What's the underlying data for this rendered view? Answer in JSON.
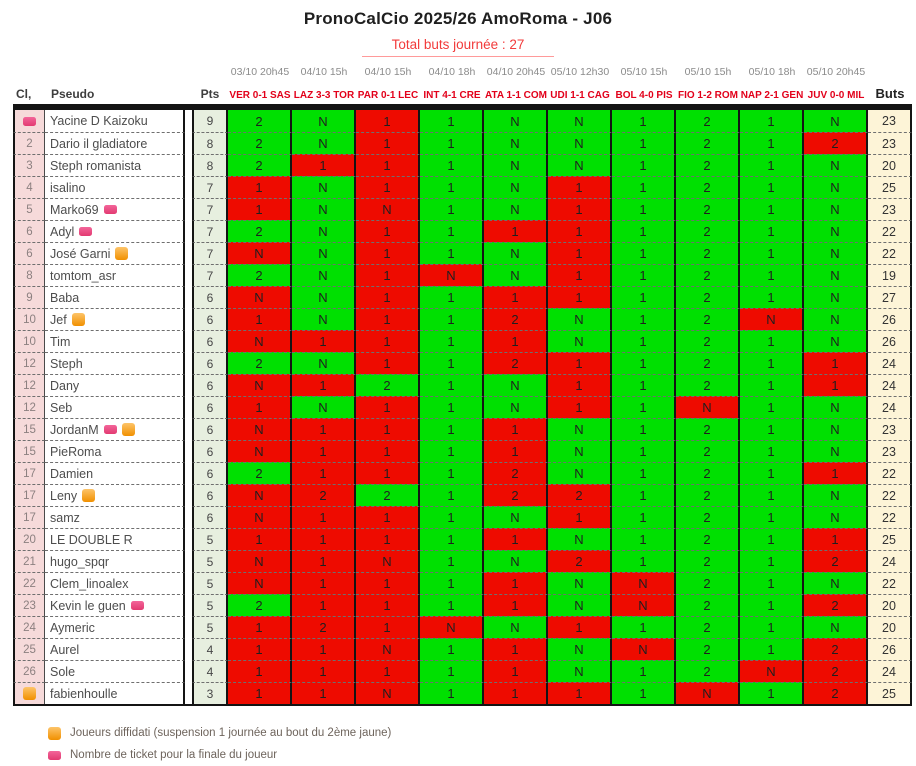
{
  "title": "PronoCalCio 2025/26 AmoRoma - J06",
  "subtitle": "Total buts journée : 27",
  "colors": {
    "correct_cell": "#00e001",
    "wrong_cell": "#ee0b00",
    "rank_col_bg": "#f6dada",
    "pts_col_bg": "#e7efdf",
    "buts_col_bg": "#fdf4d7",
    "match_header_red": "#e2001a",
    "subtitle_red": "#f23b3b"
  },
  "cell_code": {
    "g": "correct (green)",
    "r": "wrong (red)"
  },
  "table": {
    "col_rank": "Cl,",
    "col_pseudo": "Pseudo",
    "col_pts": "Pts",
    "col_buts": "Buts",
    "matches": [
      {
        "date": "03/10 20h45",
        "label": "VER 0-1 SAS"
      },
      {
        "date": "04/10 15h",
        "label": "LAZ 3-3 TOR"
      },
      {
        "date": "04/10 15h",
        "label": "PAR 0-1 LEC"
      },
      {
        "date": "04/10 18h",
        "label": "INT 4-1 CRE"
      },
      {
        "date": "04/10 20h45",
        "label": "ATA 1-1 COM"
      },
      {
        "date": "05/10 12h30",
        "label": "UDI 1-1 CAG"
      },
      {
        "date": "05/10 15h",
        "label": "BOL 4-0 PIS"
      },
      {
        "date": "05/10 15h",
        "label": "FIO 1-2 ROM"
      },
      {
        "date": "05/10 18h",
        "label": "NAP 2-1 GEN"
      },
      {
        "date": "05/10 20h45",
        "label": "JUV 0-0 MIL"
      }
    ],
    "rows": [
      {
        "rank": "",
        "rank_icon": "ticket",
        "name": "Yacine D Kaizoku",
        "icons": [],
        "pts": 9,
        "preds": [
          "2g",
          "Ng",
          "1r",
          "1g",
          "Ng",
          "Ng",
          "1g",
          "2g",
          "1g",
          "Ng"
        ],
        "buts": 23
      },
      {
        "rank": "2",
        "rank_icon": null,
        "name": "Dario il gladiatore",
        "icons": [],
        "pts": 8,
        "preds": [
          "2g",
          "Ng",
          "1r",
          "1g",
          "Ng",
          "Ng",
          "1g",
          "2g",
          "1g",
          "2r"
        ],
        "buts": 23
      },
      {
        "rank": "3",
        "rank_icon": null,
        "name": "Steph romanista",
        "icons": [],
        "pts": 8,
        "preds": [
          "2g",
          "1r",
          "1r",
          "1g",
          "Ng",
          "Ng",
          "1g",
          "2g",
          "1g",
          "Ng"
        ],
        "buts": 20
      },
      {
        "rank": "4",
        "rank_icon": null,
        "name": "isalino",
        "icons": [],
        "pts": 7,
        "preds": [
          "1r",
          "Ng",
          "1r",
          "1g",
          "Ng",
          "1r",
          "1g",
          "2g",
          "1g",
          "Ng"
        ],
        "buts": 25
      },
      {
        "rank": "5",
        "rank_icon": null,
        "name": "Marko69",
        "icons": [
          "ticket"
        ],
        "pts": 7,
        "preds": [
          "1r",
          "Ng",
          "Nr",
          "1g",
          "Ng",
          "1r",
          "1g",
          "2g",
          "1g",
          "Ng"
        ],
        "buts": 23
      },
      {
        "rank": "6",
        "rank_icon": null,
        "name": "Adyl",
        "icons": [
          "ticket"
        ],
        "pts": 7,
        "preds": [
          "2g",
          "Ng",
          "1r",
          "1g",
          "1r",
          "1r",
          "1g",
          "2g",
          "1g",
          "Ng"
        ],
        "buts": 22
      },
      {
        "rank": "6",
        "rank_icon": null,
        "name": "José Garni",
        "icons": [
          "diffidato"
        ],
        "pts": 7,
        "preds": [
          "Nr",
          "Ng",
          "1r",
          "1g",
          "Ng",
          "1r",
          "1g",
          "2g",
          "1g",
          "Ng"
        ],
        "buts": 22
      },
      {
        "rank": "8",
        "rank_icon": null,
        "name": "tomtom_asr",
        "icons": [],
        "pts": 7,
        "preds": [
          "2g",
          "Ng",
          "1r",
          "Nr",
          "Ng",
          "1r",
          "1g",
          "2g",
          "1g",
          "Ng"
        ],
        "buts": 19
      },
      {
        "rank": "9",
        "rank_icon": null,
        "name": "Baba",
        "icons": [],
        "pts": 6,
        "preds": [
          "Nr",
          "Ng",
          "1r",
          "1g",
          "1r",
          "1r",
          "1g",
          "2g",
          "1g",
          "Ng"
        ],
        "buts": 27
      },
      {
        "rank": "10",
        "rank_icon": null,
        "name": "Jef",
        "icons": [
          "diffidato"
        ],
        "pts": 6,
        "preds": [
          "1r",
          "Ng",
          "1r",
          "1g",
          "2r",
          "Ng",
          "1g",
          "2g",
          "Nr",
          "Ng"
        ],
        "buts": 26
      },
      {
        "rank": "10",
        "rank_icon": null,
        "name": "Tim",
        "icons": [],
        "pts": 6,
        "preds": [
          "Nr",
          "1r",
          "1r",
          "1g",
          "1r",
          "Ng",
          "1g",
          "2g",
          "1g",
          "Ng"
        ],
        "buts": 26
      },
      {
        "rank": "12",
        "rank_icon": null,
        "name": "Steph",
        "icons": [],
        "pts": 6,
        "preds": [
          "2g",
          "Ng",
          "1r",
          "1g",
          "2r",
          "1r",
          "1g",
          "2g",
          "1g",
          "1r"
        ],
        "buts": 24
      },
      {
        "rank": "12",
        "rank_icon": null,
        "name": "Dany",
        "icons": [],
        "pts": 6,
        "preds": [
          "Nr",
          "1r",
          "2g",
          "1g",
          "Ng",
          "1r",
          "1g",
          "2g",
          "1g",
          "1r"
        ],
        "buts": 24
      },
      {
        "rank": "12",
        "rank_icon": null,
        "name": "Seb",
        "icons": [],
        "pts": 6,
        "preds": [
          "1r",
          "Ng",
          "1r",
          "1g",
          "Ng",
          "1r",
          "1g",
          "Nr",
          "1g",
          "Ng"
        ],
        "buts": 24
      },
      {
        "rank": "15",
        "rank_icon": null,
        "name": "JordanM",
        "icons": [
          "ticket",
          "diffidato"
        ],
        "pts": 6,
        "preds": [
          "Nr",
          "1r",
          "1r",
          "1g",
          "1r",
          "Ng",
          "1g",
          "2g",
          "1g",
          "Ng"
        ],
        "buts": 23
      },
      {
        "rank": "15",
        "rank_icon": null,
        "name": "PieRoma",
        "icons": [],
        "pts": 6,
        "preds": [
          "Nr",
          "1r",
          "1r",
          "1g",
          "1r",
          "Ng",
          "1g",
          "2g",
          "1g",
          "Ng"
        ],
        "buts": 23
      },
      {
        "rank": "17",
        "rank_icon": null,
        "name": "Damien",
        "icons": [],
        "pts": 6,
        "preds": [
          "2g",
          "1r",
          "1r",
          "1g",
          "2r",
          "Ng",
          "1g",
          "2g",
          "1g",
          "1r"
        ],
        "buts": 22
      },
      {
        "rank": "17",
        "rank_icon": null,
        "name": "Leny",
        "icons": [
          "diffidato"
        ],
        "pts": 6,
        "preds": [
          "Nr",
          "2r",
          "2g",
          "1g",
          "2r",
          "2r",
          "1g",
          "2g",
          "1g",
          "Ng"
        ],
        "buts": 22
      },
      {
        "rank": "17",
        "rank_icon": null,
        "name": "samz",
        "icons": [],
        "pts": 6,
        "preds": [
          "Nr",
          "1r",
          "1r",
          "1g",
          "Ng",
          "1r",
          "1g",
          "2g",
          "1g",
          "Ng"
        ],
        "buts": 22
      },
      {
        "rank": "20",
        "rank_icon": null,
        "name": "LE DOUBLE R",
        "icons": [],
        "pts": 5,
        "preds": [
          "1r",
          "1r",
          "1r",
          "1g",
          "1r",
          "Ng",
          "1g",
          "2g",
          "1g",
          "1r"
        ],
        "buts": 25
      },
      {
        "rank": "21",
        "rank_icon": null,
        "name": "hugo_spqr",
        "icons": [],
        "pts": 5,
        "preds": [
          "Nr",
          "1r",
          "Nr",
          "1g",
          "Ng",
          "2r",
          "1g",
          "2g",
          "1g",
          "2r"
        ],
        "buts": 24
      },
      {
        "rank": "22",
        "rank_icon": null,
        "name": "Clem_linoalex",
        "icons": [],
        "pts": 5,
        "preds": [
          "Nr",
          "1r",
          "1r",
          "1g",
          "1r",
          "Ng",
          "Nr",
          "2g",
          "1g",
          "Ng"
        ],
        "buts": 22
      },
      {
        "rank": "23",
        "rank_icon": null,
        "name": "Kevin le guen",
        "icons": [
          "ticket"
        ],
        "pts": 5,
        "preds": [
          "2g",
          "1r",
          "1r",
          "1g",
          "1r",
          "Ng",
          "Nr",
          "2g",
          "1g",
          "2r"
        ],
        "buts": 20
      },
      {
        "rank": "24",
        "rank_icon": null,
        "name": "Aymeric",
        "icons": [],
        "pts": 5,
        "preds": [
          "1r",
          "2r",
          "1r",
          "Nr",
          "Ng",
          "1r",
          "1g",
          "2g",
          "1g",
          "Ng"
        ],
        "buts": 20
      },
      {
        "rank": "25",
        "rank_icon": null,
        "name": "Aurel",
        "icons": [],
        "pts": 4,
        "preds": [
          "1r",
          "1r",
          "Nr",
          "1g",
          "1r",
          "Ng",
          "Nr",
          "2g",
          "1g",
          "2r"
        ],
        "buts": 26
      },
      {
        "rank": "26",
        "rank_icon": null,
        "name": "Sole",
        "icons": [],
        "pts": 4,
        "preds": [
          "1r",
          "1r",
          "1r",
          "1g",
          "1r",
          "Ng",
          "1g",
          "2g",
          "Nr",
          "2r"
        ],
        "buts": 24
      },
      {
        "rank": "",
        "rank_icon": "diffidato",
        "name": "fabienhoulle",
        "icons": [],
        "pts": 3,
        "preds": [
          "1r",
          "1r",
          "Nr",
          "1g",
          "1r",
          "1r",
          "1g",
          "Nr",
          "1g",
          "2r"
        ],
        "buts": 25
      }
    ]
  },
  "legend": [
    {
      "icon": "diffidato",
      "text": "Joueurs diffidati (suspension 1 journée au bout du 2ème jaune)"
    },
    {
      "icon": "ticket",
      "text": "Nombre de ticket pour la finale du joueur"
    }
  ]
}
